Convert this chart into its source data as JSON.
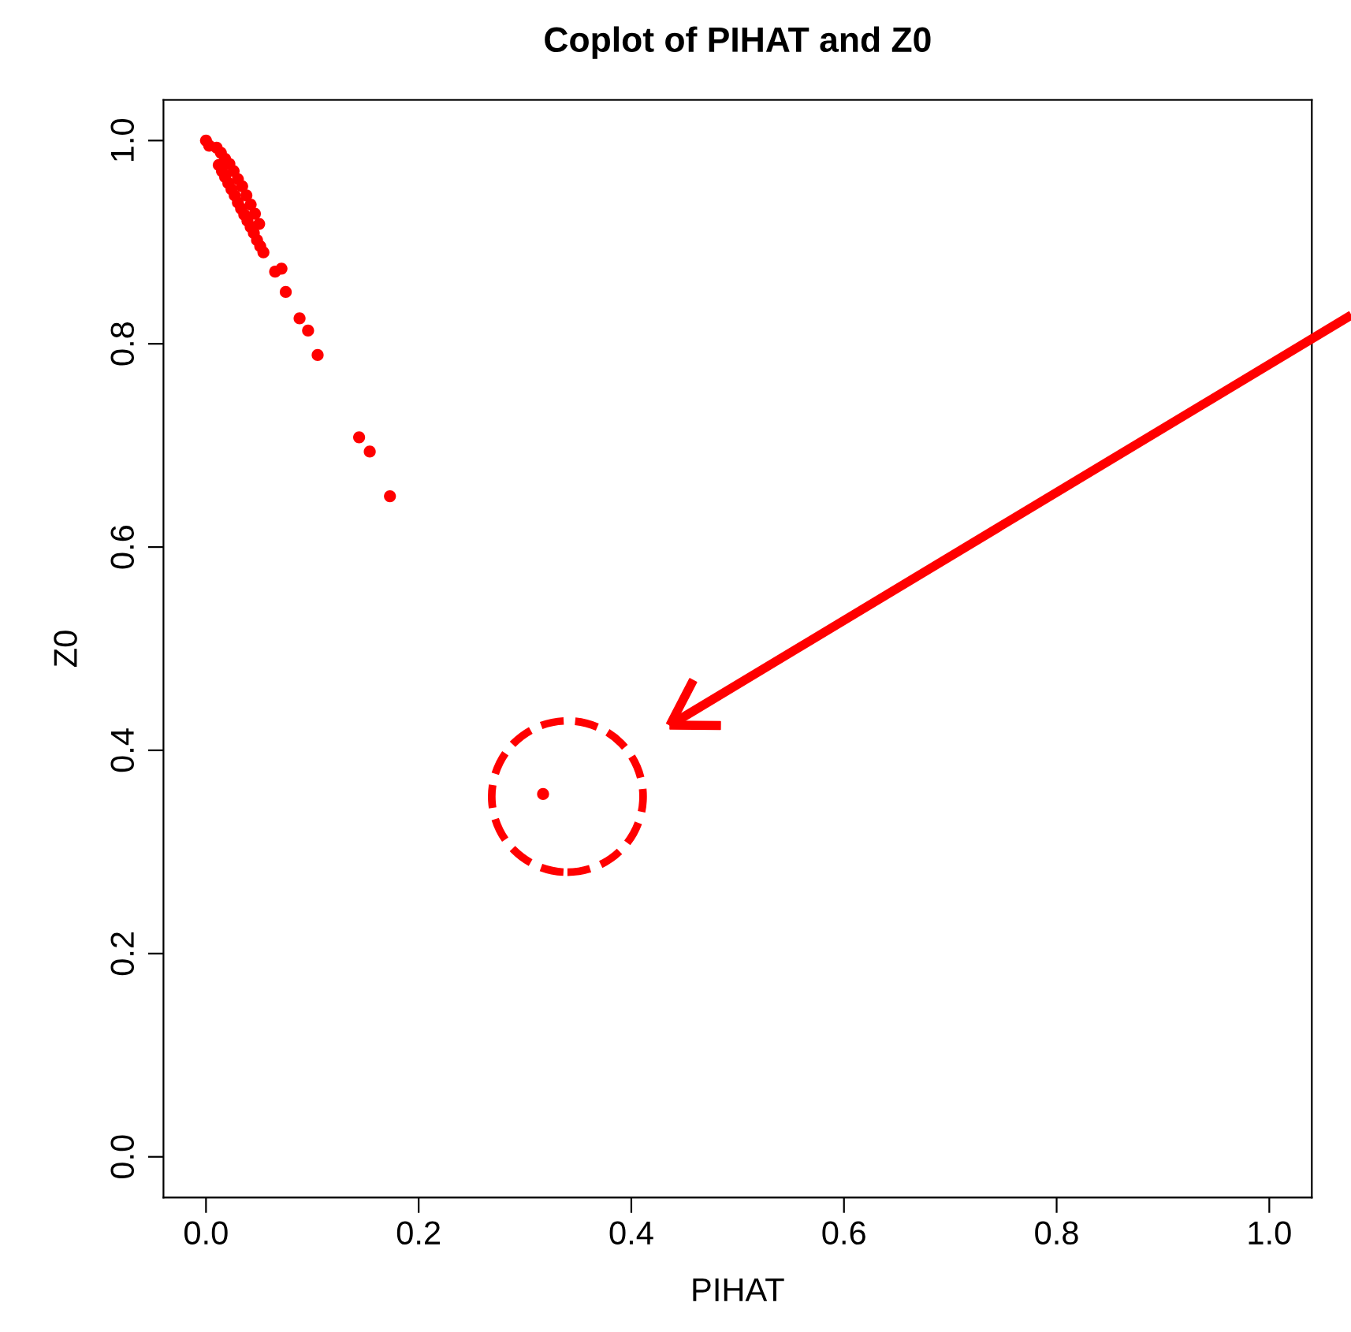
{
  "chart_data": {
    "type": "scatter",
    "title": "Coplot of PIHAT and Z0",
    "xlabel": "PIHAT",
    "ylabel": "Z0",
    "x": [
      0.0,
      0.003,
      0.012,
      0.015,
      0.018,
      0.021,
      0.024,
      0.027,
      0.03,
      0.033,
      0.036,
      0.039,
      0.042,
      0.045,
      0.048,
      0.051,
      0.054,
      0.01,
      0.014,
      0.018,
      0.022,
      0.026,
      0.03,
      0.034,
      0.038,
      0.042,
      0.046,
      0.05,
      0.065,
      0.071,
      0.075,
      0.088,
      0.096,
      0.105,
      0.144,
      0.154,
      0.173,
      0.317
    ],
    "series": [
      {
        "color": "#ff0000",
        "values": [
          1.0,
          0.995,
          0.976,
          0.97,
          0.964,
          0.958,
          0.952,
          0.946,
          0.939,
          0.933,
          0.927,
          0.921,
          0.915,
          0.909,
          0.902,
          0.896,
          0.89,
          0.993,
          0.988,
          0.982,
          0.977,
          0.97,
          0.962,
          0.955,
          0.946,
          0.937,
          0.928,
          0.918,
          0.871,
          0.874,
          0.851,
          0.825,
          0.813,
          0.789,
          0.708,
          0.694,
          0.65,
          0.357
        ]
      }
    ],
    "xlim": [
      -0.04,
      1.04
    ],
    "ylim": [
      -0.04,
      1.04
    ],
    "xticks": [
      {
        "value": 0,
        "label": "0.0"
      },
      0.2,
      0.4,
      0.6,
      0.8,
      {
        "value": 1,
        "label": "1.0"
      }
    ],
    "yticks": [
      {
        "value": 0,
        "label": "0.0"
      },
      0.2,
      0.4,
      0.6,
      0.8,
      {
        "value": 1,
        "label": "1.0"
      }
    ],
    "marker": "circle",
    "grid": false,
    "legend": false
  }
}
